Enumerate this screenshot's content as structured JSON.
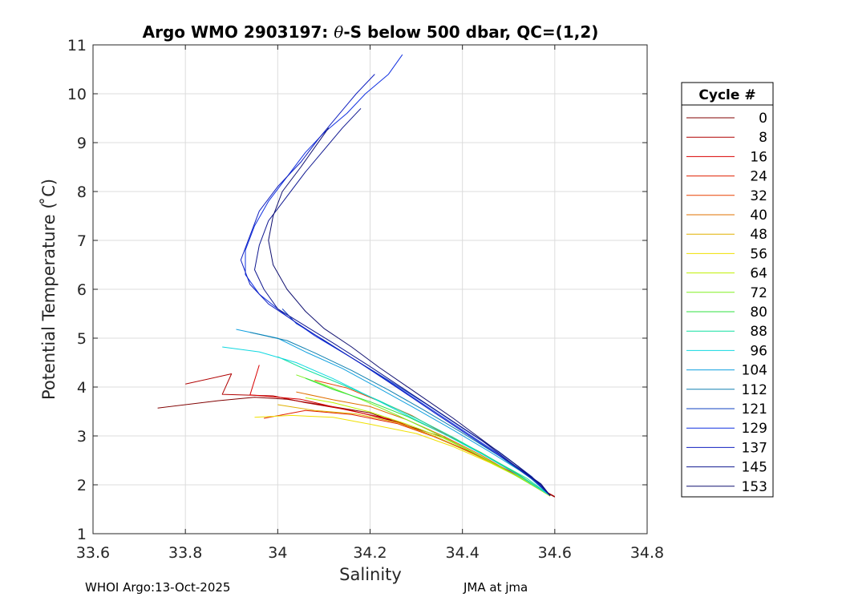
{
  "chart_data": {
    "type": "line",
    "title_prefix": "Argo WMO 2903197: ",
    "title_theta": "θ",
    "title_suffix": "-S below 500 dbar,  QC=(1,2)",
    "xlabel": "Salinity",
    "ylabel": "Potential Temperature ( ̊C)",
    "xlim": [
      33.6,
      34.8
    ],
    "ylim": [
      1,
      11
    ],
    "xticks": [
      33.6,
      33.8,
      34,
      34.2,
      34.4,
      34.6,
      34.8
    ],
    "xtick_labels": [
      "33.6",
      "33.8",
      "34",
      "34.2",
      "34.4",
      "34.6",
      "34.8"
    ],
    "yticks": [
      1,
      2,
      3,
      4,
      5,
      6,
      7,
      8,
      9,
      10,
      11
    ],
    "ytick_labels": [
      "1",
      "2",
      "3",
      "4",
      "5",
      "6",
      "7",
      "8",
      "9",
      "10",
      "11"
    ],
    "grid": true,
    "legend_title": "Cycle #",
    "legend_position": "right",
    "legend": [
      {
        "label": "0",
        "color": "#800000"
      },
      {
        "label": "8",
        "color": "#b00000"
      },
      {
        "label": "16",
        "color": "#d80000"
      },
      {
        "label": "24",
        "color": "#e02000"
      },
      {
        "label": "32",
        "color": "#e84000"
      },
      {
        "label": "40",
        "color": "#e07000"
      },
      {
        "label": "48",
        "color": "#e0b000"
      },
      {
        "label": "56",
        "color": "#f0e000"
      },
      {
        "label": "64",
        "color": "#c0f000"
      },
      {
        "label": "72",
        "color": "#80f020"
      },
      {
        "label": "80",
        "color": "#30e040"
      },
      {
        "label": "88",
        "color": "#10e0a0"
      },
      {
        "label": "96",
        "color": "#10d8e0"
      },
      {
        "label": "104",
        "color": "#10a0e0"
      },
      {
        "label": "112",
        "color": "#1080b0"
      },
      {
        "label": "121",
        "color": "#1040c0"
      },
      {
        "label": "129",
        "color": "#1030e0"
      },
      {
        "label": "137",
        "color": "#1020c0"
      },
      {
        "label": "145",
        "color": "#101890"
      },
      {
        "label": "153",
        "color": "#101070"
      }
    ],
    "series": [
      {
        "name": "cycle 0",
        "color": "#800000",
        "points": [
          [
            33.74,
            3.57
          ],
          [
            33.87,
            3.72
          ],
          [
            33.95,
            3.79
          ],
          [
            34.02,
            3.75
          ],
          [
            34.1,
            3.63
          ],
          [
            34.2,
            3.47
          ],
          [
            34.28,
            3.21
          ],
          [
            34.36,
            2.97
          ],
          [
            34.44,
            2.58
          ],
          [
            34.52,
            2.17
          ],
          [
            34.6,
            1.75
          ]
        ]
      },
      {
        "name": "cycle 8",
        "color": "#b00000",
        "points": [
          [
            33.8,
            4.06
          ],
          [
            33.9,
            4.27
          ],
          [
            33.88,
            3.85
          ],
          [
            33.99,
            3.82
          ],
          [
            34.06,
            3.68
          ],
          [
            34.16,
            3.52
          ],
          [
            34.26,
            3.28
          ],
          [
            34.34,
            2.99
          ],
          [
            34.43,
            2.62
          ],
          [
            34.52,
            2.17
          ],
          [
            34.6,
            1.76
          ]
        ]
      },
      {
        "name": "cycle 16",
        "color": "#d80000",
        "points": [
          [
            33.96,
            4.45
          ],
          [
            33.94,
            3.84
          ],
          [
            34.05,
            3.75
          ],
          [
            34.14,
            3.55
          ],
          [
            34.25,
            3.33
          ],
          [
            34.33,
            3.02
          ],
          [
            34.42,
            2.66
          ],
          [
            34.52,
            2.2
          ],
          [
            34.59,
            1.77
          ]
        ]
      },
      {
        "name": "cycle 24",
        "color": "#e02000",
        "points": [
          [
            33.97,
            3.36
          ],
          [
            34.06,
            3.52
          ],
          [
            34.16,
            3.44
          ],
          [
            34.26,
            3.25
          ],
          [
            34.34,
            2.98
          ],
          [
            34.43,
            2.61
          ],
          [
            34.52,
            2.18
          ],
          [
            34.59,
            1.77
          ]
        ]
      },
      {
        "name": "cycle 32",
        "color": "#e84000",
        "points": [
          [
            34.08,
            4.14
          ],
          [
            34.15,
            3.98
          ],
          [
            34.22,
            3.71
          ],
          [
            34.29,
            3.42
          ],
          [
            34.36,
            3.05
          ],
          [
            34.44,
            2.66
          ],
          [
            34.52,
            2.21
          ],
          [
            34.59,
            1.78
          ]
        ]
      },
      {
        "name": "cycle 40",
        "color": "#e07000",
        "points": [
          [
            34.04,
            3.9
          ],
          [
            34.12,
            3.74
          ],
          [
            34.2,
            3.6
          ],
          [
            34.28,
            3.33
          ],
          [
            34.36,
            2.99
          ],
          [
            34.44,
            2.61
          ],
          [
            34.52,
            2.17
          ],
          [
            34.59,
            1.77
          ]
        ]
      },
      {
        "name": "cycle 48",
        "color": "#e0b000",
        "points": [
          [
            34.0,
            3.64
          ],
          [
            34.08,
            3.52
          ],
          [
            34.17,
            3.45
          ],
          [
            34.26,
            3.27
          ],
          [
            34.34,
            2.99
          ],
          [
            34.43,
            2.6
          ],
          [
            34.52,
            2.18
          ],
          [
            34.59,
            1.77
          ]
        ]
      },
      {
        "name": "cycle 56",
        "color": "#f0e000",
        "points": [
          [
            33.95,
            3.38
          ],
          [
            34.03,
            3.42
          ],
          [
            34.12,
            3.38
          ],
          [
            34.2,
            3.24
          ],
          [
            34.3,
            3.05
          ],
          [
            34.38,
            2.78
          ],
          [
            34.46,
            2.45
          ],
          [
            34.53,
            2.12
          ],
          [
            34.59,
            1.77
          ]
        ]
      },
      {
        "name": "cycle 64",
        "color": "#c0f000",
        "points": [
          [
            34.06,
            3.78
          ],
          [
            34.12,
            3.68
          ],
          [
            34.2,
            3.49
          ],
          [
            34.28,
            3.24
          ],
          [
            34.36,
            2.95
          ],
          [
            34.44,
            2.58
          ],
          [
            34.52,
            2.17
          ],
          [
            34.59,
            1.77
          ]
        ]
      },
      {
        "name": "cycle 72",
        "color": "#80f020",
        "points": [
          [
            34.04,
            4.25
          ],
          [
            34.1,
            4.05
          ],
          [
            34.18,
            3.75
          ],
          [
            34.26,
            3.42
          ],
          [
            34.34,
            3.06
          ],
          [
            34.42,
            2.68
          ],
          [
            34.5,
            2.27
          ],
          [
            34.59,
            1.78
          ]
        ]
      },
      {
        "name": "cycle 80",
        "color": "#30e040",
        "points": [
          [
            34.06,
            4.18
          ],
          [
            34.12,
            3.95
          ],
          [
            34.2,
            3.7
          ],
          [
            34.28,
            3.4
          ],
          [
            34.36,
            3.04
          ],
          [
            34.44,
            2.66
          ],
          [
            34.52,
            2.22
          ],
          [
            34.59,
            1.78
          ]
        ]
      },
      {
        "name": "cycle 88",
        "color": "#10e0a0",
        "points": [
          [
            34.0,
            4.62
          ],
          [
            34.06,
            4.36
          ],
          [
            34.14,
            4.05
          ],
          [
            34.22,
            3.72
          ],
          [
            34.3,
            3.36
          ],
          [
            34.38,
            2.97
          ],
          [
            34.46,
            2.55
          ],
          [
            34.54,
            2.13
          ],
          [
            34.59,
            1.78
          ]
        ]
      },
      {
        "name": "cycle 96",
        "color": "#10d8e0",
        "points": [
          [
            33.88,
            4.82
          ],
          [
            33.96,
            4.72
          ],
          [
            34.04,
            4.5
          ],
          [
            34.12,
            4.17
          ],
          [
            34.2,
            3.8
          ],
          [
            34.28,
            3.42
          ],
          [
            34.36,
            3.04
          ],
          [
            34.44,
            2.64
          ],
          [
            34.52,
            2.2
          ],
          [
            34.59,
            1.78
          ]
        ]
      },
      {
        "name": "cycle 104",
        "color": "#10a0e0",
        "points": [
          [
            33.91,
            5.18
          ],
          [
            34.0,
            5.0
          ],
          [
            34.06,
            4.72
          ],
          [
            34.14,
            4.38
          ],
          [
            34.22,
            3.97
          ],
          [
            34.3,
            3.55
          ],
          [
            34.38,
            3.12
          ],
          [
            34.46,
            2.67
          ],
          [
            34.54,
            2.2
          ],
          [
            34.59,
            1.78
          ]
        ]
      },
      {
        "name": "cycle 112",
        "color": "#1080b0",
        "points": [
          [
            33.94,
            5.12
          ],
          [
            34.02,
            4.95
          ],
          [
            34.08,
            4.7
          ],
          [
            34.16,
            4.34
          ],
          [
            34.24,
            3.94
          ],
          [
            34.32,
            3.51
          ],
          [
            34.4,
            3.06
          ],
          [
            34.48,
            2.59
          ],
          [
            34.55,
            2.12
          ],
          [
            34.59,
            1.78
          ]
        ]
      },
      {
        "name": "cycle 121",
        "color": "#1040c0",
        "points": [
          [
            34.01,
            5.6
          ],
          [
            34.04,
            5.3
          ],
          [
            34.1,
            4.96
          ],
          [
            34.16,
            4.6
          ],
          [
            34.24,
            4.14
          ],
          [
            34.32,
            3.66
          ],
          [
            34.4,
            3.16
          ],
          [
            34.48,
            2.67
          ],
          [
            34.55,
            2.17
          ],
          [
            34.59,
            1.78
          ]
        ]
      },
      {
        "name": "cycle 129",
        "color": "#1030e0",
        "points": [
          [
            34.27,
            10.8
          ],
          [
            34.24,
            10.4
          ],
          [
            34.19,
            10.0
          ],
          [
            34.15,
            9.6
          ],
          [
            34.1,
            9.2
          ],
          [
            34.06,
            8.8
          ],
          [
            34.02,
            8.3
          ],
          [
            33.98,
            7.8
          ],
          [
            33.95,
            7.3
          ],
          [
            33.93,
            6.8
          ],
          [
            33.93,
            6.3
          ],
          [
            33.96,
            5.9
          ],
          [
            34.02,
            5.45
          ],
          [
            34.08,
            5.05
          ],
          [
            34.16,
            4.6
          ],
          [
            34.24,
            4.12
          ],
          [
            34.32,
            3.62
          ],
          [
            34.4,
            3.12
          ],
          [
            34.48,
            2.62
          ],
          [
            34.55,
            2.14
          ],
          [
            34.59,
            1.78
          ]
        ]
      },
      {
        "name": "cycle 137",
        "color": "#1020c0",
        "points": [
          [
            34.21,
            10.4
          ],
          [
            34.17,
            10.0
          ],
          [
            34.13,
            9.55
          ],
          [
            34.09,
            9.1
          ],
          [
            34.05,
            8.6
          ],
          [
            34.0,
            8.1
          ],
          [
            33.96,
            7.6
          ],
          [
            33.94,
            7.1
          ],
          [
            33.92,
            6.6
          ],
          [
            33.94,
            6.1
          ],
          [
            33.98,
            5.7
          ],
          [
            34.04,
            5.32
          ],
          [
            34.1,
            4.95
          ],
          [
            34.18,
            4.48
          ],
          [
            34.26,
            3.98
          ],
          [
            34.34,
            3.47
          ],
          [
            34.42,
            2.97
          ],
          [
            34.5,
            2.47
          ],
          [
            34.56,
            2.06
          ],
          [
            34.59,
            1.78
          ]
        ]
      },
      {
        "name": "cycle 145",
        "color": "#101890",
        "points": [
          [
            34.18,
            9.7
          ],
          [
            34.14,
            9.3
          ],
          [
            34.1,
            8.85
          ],
          [
            34.06,
            8.4
          ],
          [
            34.02,
            7.9
          ],
          [
            33.98,
            7.4
          ],
          [
            33.96,
            6.9
          ],
          [
            33.95,
            6.4
          ],
          [
            33.97,
            6.0
          ],
          [
            34.0,
            5.6
          ],
          [
            34.06,
            5.25
          ],
          [
            34.12,
            4.9
          ],
          [
            34.2,
            4.42
          ],
          [
            34.28,
            3.92
          ],
          [
            34.36,
            3.42
          ],
          [
            34.44,
            2.92
          ],
          [
            34.51,
            2.42
          ],
          [
            34.57,
            2.02
          ],
          [
            34.59,
            1.78
          ]
        ]
      },
      {
        "name": "cycle 153",
        "color": "#101070",
        "points": [
          [
            34.11,
            9.3
          ],
          [
            34.08,
            8.9
          ],
          [
            34.05,
            8.5
          ],
          [
            34.01,
            8.0
          ],
          [
            33.99,
            7.5
          ],
          [
            33.98,
            7.0
          ],
          [
            33.99,
            6.5
          ],
          [
            34.02,
            6.0
          ],
          [
            34.06,
            5.55
          ],
          [
            34.1,
            5.2
          ],
          [
            34.16,
            4.82
          ],
          [
            34.22,
            4.4
          ],
          [
            34.3,
            3.88
          ],
          [
            34.38,
            3.36
          ],
          [
            34.45,
            2.87
          ],
          [
            34.52,
            2.38
          ],
          [
            34.57,
            2.0
          ],
          [
            34.59,
            1.78
          ]
        ]
      }
    ]
  },
  "footer": {
    "left": "WHOI Argo:13-Oct-2025",
    "right": "JMA at jma"
  }
}
